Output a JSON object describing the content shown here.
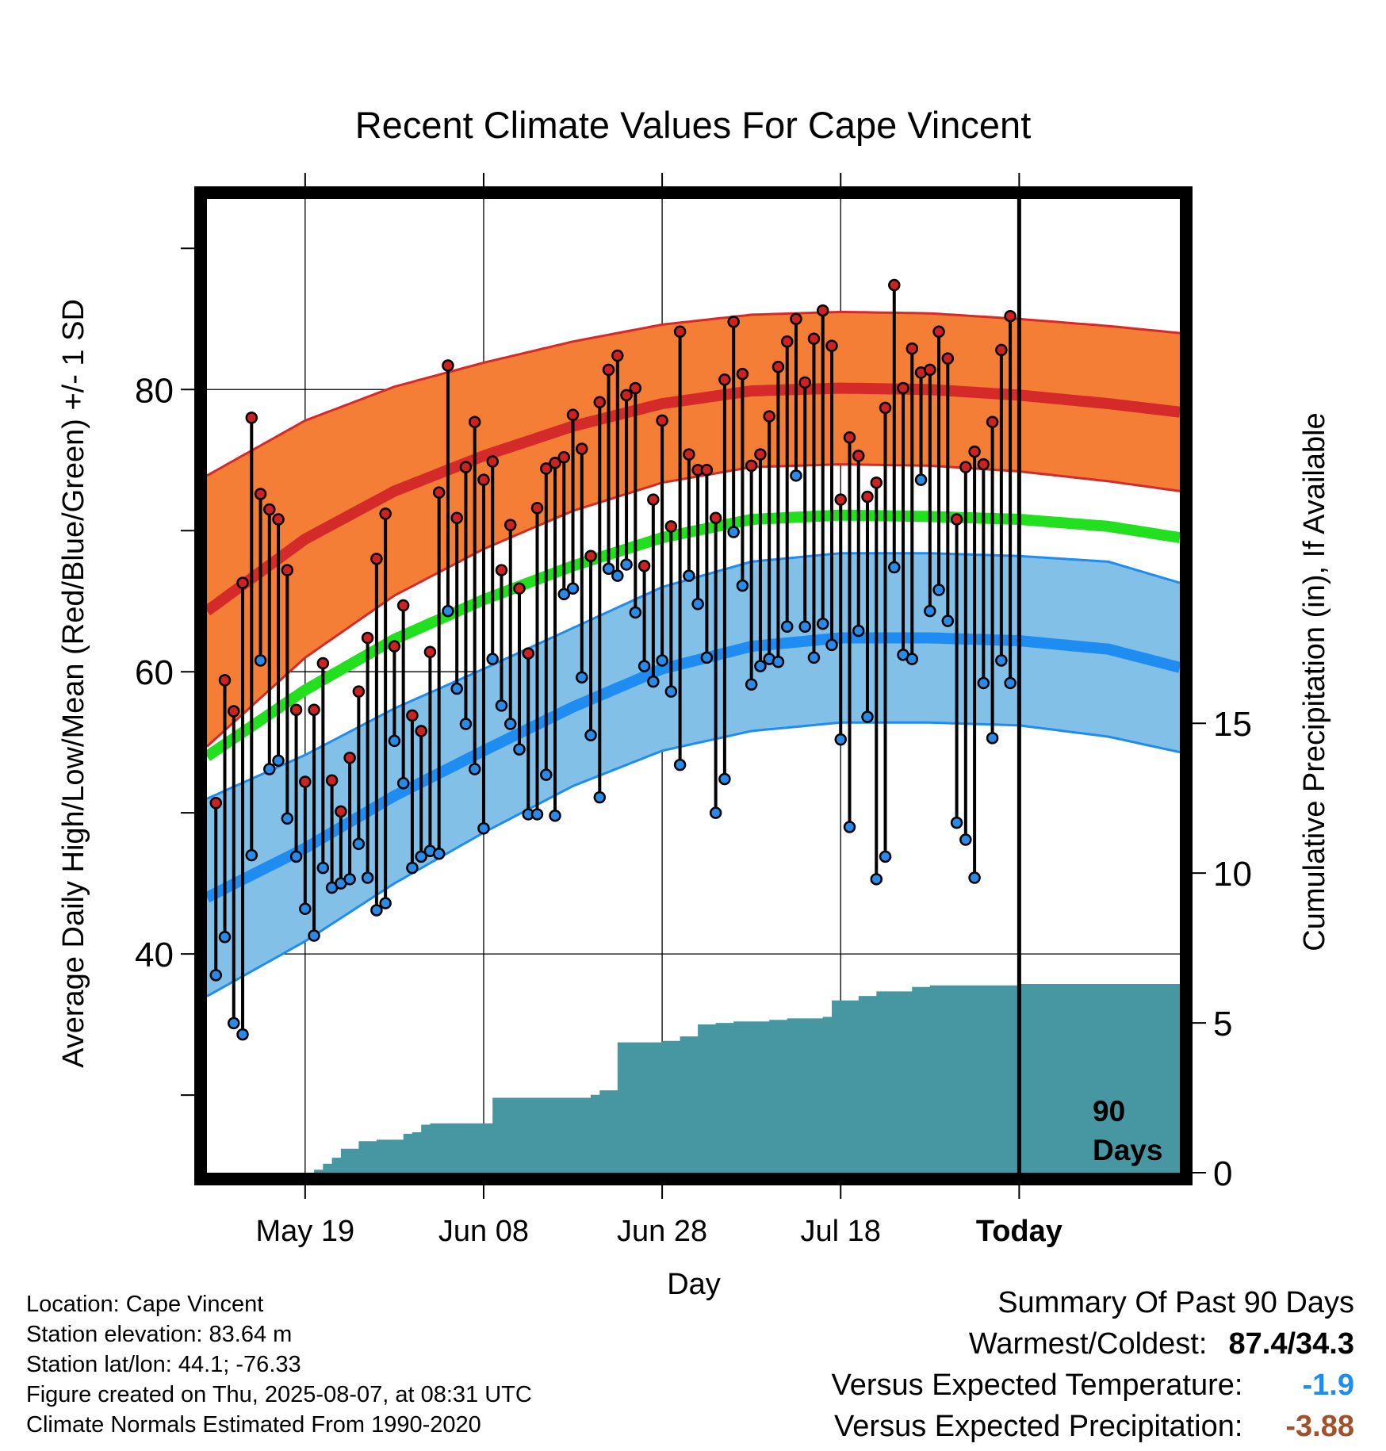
{
  "chart_data": {
    "type": "line",
    "title": "Recent Climate Values For Cape Vincent",
    "xlabel": "Day",
    "ylabel_left": "Average Daily High/Low/Mean (Red/Blue/Green) +/- 1 SD",
    "ylabel_right": "Cumulative Precipitation (in), If Available",
    "x_tick_labels": [
      "May 19",
      "Jun 08",
      "Jun 28",
      "Jul 18",
      "Today"
    ],
    "x_tick_days": [
      10,
      30,
      50,
      70,
      90
    ],
    "xlim": [
      -1,
      108
    ],
    "y_left_ticks": [
      40,
      60,
      80
    ],
    "y_left_lim": [
      24.5,
      93.5
    ],
    "y_right_ticks": [
      0,
      5,
      10,
      15
    ],
    "y_right_lim": [
      0,
      32.5
    ],
    "marker_label": "90 Days",
    "normals": {
      "days": [
        -1,
        10,
        20,
        30,
        40,
        50,
        60,
        70,
        80,
        90,
        100,
        108
      ],
      "high_mean": [
        64.3,
        69.4,
        72.8,
        75.3,
        77.4,
        79.0,
        79.9,
        80.1,
        80.0,
        79.6,
        79.0,
        78.4
      ],
      "high_sd": [
        9.6,
        8.4,
        7.4,
        6.6,
        6.0,
        5.6,
        5.4,
        5.4,
        5.4,
        5.4,
        5.5,
        5.6
      ],
      "low_mean": [
        44.0,
        47.5,
        51.2,
        54.4,
        57.5,
        60.2,
        61.8,
        62.4,
        62.4,
        62.2,
        61.6,
        60.3
      ],
      "low_sd": [
        7.0,
        6.6,
        6.2,
        5.8,
        5.6,
        5.8,
        6.0,
        6.0,
        6.0,
        6.0,
        6.2,
        6.0
      ],
      "avg_mean": [
        54.0,
        58.7,
        62.3,
        65.1,
        67.5,
        69.5,
        70.8,
        71.1,
        71.0,
        70.8,
        70.3,
        69.5
      ]
    },
    "daily": {
      "high": [
        50.7,
        59.4,
        57.2,
        66.3,
        78.0,
        72.6,
        71.5,
        70.8,
        67.2,
        57.3,
        52.2,
        57.3,
        60.6,
        52.3,
        50.1,
        53.9,
        58.6,
        62.4,
        68.0,
        71.2,
        61.8,
        64.7,
        56.9,
        55.8,
        61.4,
        72.7,
        81.7,
        70.9,
        74.5,
        77.7,
        73.6,
        74.9,
        67.2,
        70.4,
        65.9,
        61.3,
        71.6,
        74.4,
        74.8,
        75.2,
        78.2,
        75.8,
        68.2,
        79.1,
        81.4,
        82.4,
        79.6,
        80.1,
        67.5,
        72.2,
        77.8,
        70.3,
        84.1,
        75.4,
        74.3,
        74.3,
        70.9,
        80.7,
        84.8,
        81.1,
        74.6,
        75.4,
        78.1,
        81.6,
        83.4,
        85.0,
        80.5,
        83.6,
        85.6,
        83.1,
        72.2,
        76.6,
        75.3,
        72.4,
        73.4,
        78.7,
        87.4,
        80.1,
        82.9,
        81.2,
        81.4,
        84.1,
        82.2,
        70.8,
        74.5,
        75.6,
        74.7,
        77.7,
        82.8,
        85.2
      ],
      "low": [
        38.5,
        41.2,
        35.1,
        34.3,
        47.0,
        60.8,
        53.1,
        53.7,
        49.6,
        46.9,
        43.2,
        41.3,
        46.1,
        44.7,
        45.0,
        45.3,
        47.8,
        45.4,
        43.1,
        43.6,
        55.1,
        52.1,
        46.1,
        46.9,
        47.3,
        47.1,
        64.3,
        58.8,
        56.3,
        53.1,
        48.9,
        60.9,
        57.6,
        56.3,
        54.5,
        49.9,
        49.9,
        52.7,
        49.8,
        65.5,
        65.9,
        59.6,
        55.5,
        51.1,
        67.3,
        66.8,
        67.6,
        64.2,
        60.4,
        59.3,
        60.8,
        58.6,
        53.4,
        66.8,
        64.8,
        61.0,
        50.0,
        52.4,
        69.9,
        66.1,
        59.1,
        60.4,
        60.9,
        60.7,
        63.2,
        73.9,
        63.2,
        61.0,
        63.4,
        61.9,
        55.2,
        49.0,
        62.9,
        56.8,
        45.3,
        46.9,
        67.4,
        61.2,
        60.9,
        73.6,
        64.3,
        65.8,
        63.6,
        49.3,
        48.1,
        45.4,
        59.2,
        55.3,
        60.8,
        59.2
      ]
    },
    "precip": {
      "days": [
        -1,
        10,
        11,
        12,
        13,
        14,
        16,
        18,
        20,
        21,
        22,
        23,
        24,
        26,
        28,
        30,
        31,
        32,
        34,
        36,
        38,
        40,
        42,
        43,
        44,
        45,
        46,
        48,
        50,
        52,
        54,
        56,
        58,
        60,
        62,
        64,
        66,
        68,
        69,
        70,
        72,
        74,
        76,
        78,
        80,
        90,
        108
      ],
      "values": [
        0,
        0,
        0.1,
        0.3,
        0.5,
        0.8,
        1.05,
        1.1,
        1.1,
        1.3,
        1.35,
        1.6,
        1.65,
        1.65,
        1.65,
        1.65,
        2.5,
        2.5,
        2.5,
        2.5,
        2.5,
        2.5,
        2.6,
        2.75,
        2.75,
        4.35,
        4.35,
        4.35,
        4.4,
        4.55,
        4.95,
        5.0,
        5.05,
        5.05,
        5.1,
        5.15,
        5.15,
        5.2,
        5.75,
        5.75,
        5.9,
        6.05,
        6.05,
        6.2,
        6.25,
        6.3,
        6.3
      ]
    }
  },
  "colors": {
    "high_band": "#f47e35",
    "high_line": "#d42a2a",
    "low_band": "#82c0e8",
    "low_line": "#1e8cf0",
    "mean_line": "#22e01e",
    "precip_fill": "#4797a3",
    "dot_high": "#cc2222",
    "dot_low": "#2a8ae8",
    "summary_temp": "#1e8cf0",
    "summary_precip": "#a0522d"
  },
  "station": {
    "location": "Location: Cape Vincent",
    "elevation": "Station elevation: 83.64 m",
    "latlon": "Station lat/lon: 44.1; -76.33",
    "created": "Figure created on Thu, 2025-08-07, at 08:31 UTC",
    "normals": "Climate Normals Estimated From 1990-2020"
  },
  "summary": {
    "heading": "Summary Of Past 90 Days",
    "warm_cold_label": "Warmest/Coldest:",
    "warm_cold_value": "87.4/34.3",
    "temp_label": "Versus Expected Temperature:",
    "temp_value": "-1.9",
    "precip_label": "Versus Expected Precipitation:",
    "precip_value": "-3.88"
  }
}
